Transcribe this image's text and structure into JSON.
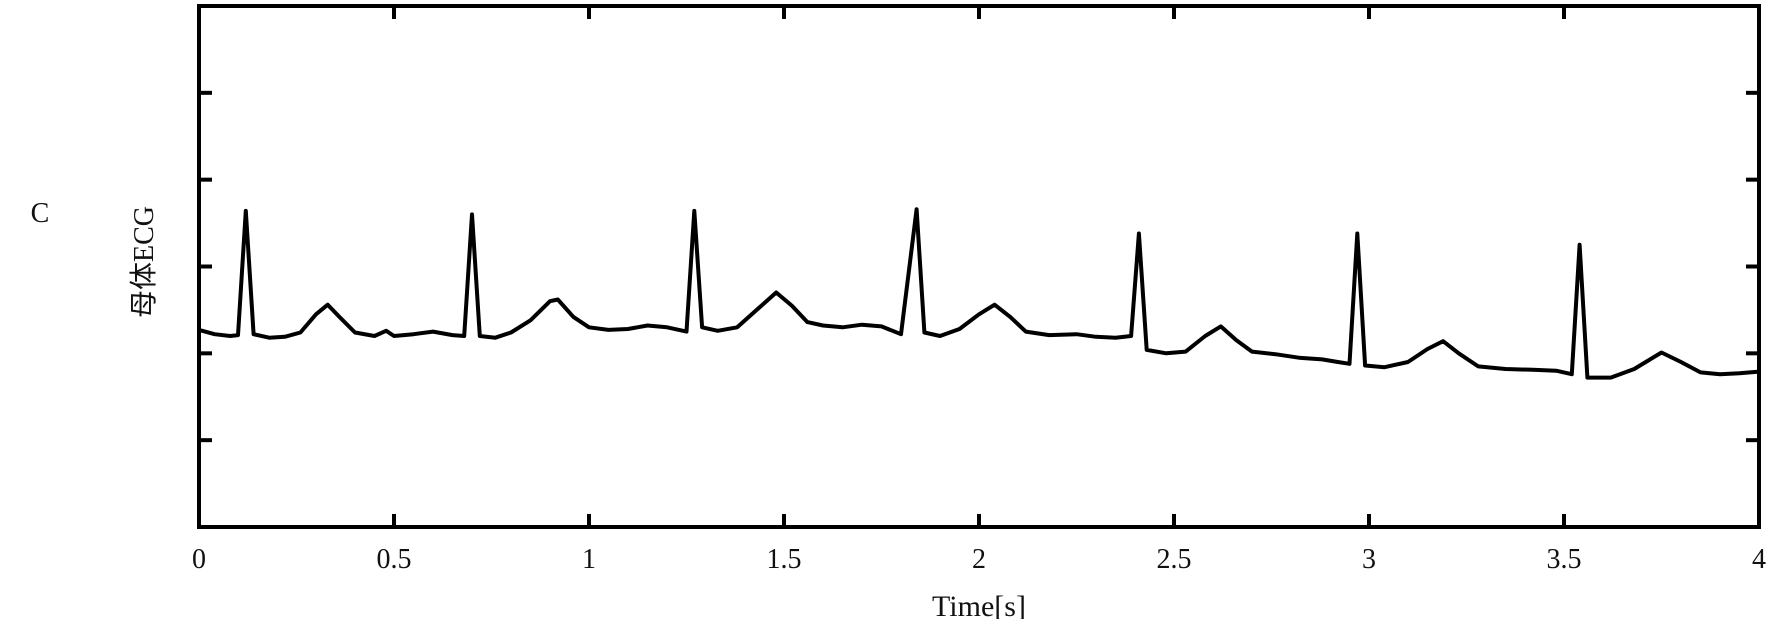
{
  "panel_label": "C",
  "chart_data": {
    "type": "line",
    "title": "",
    "xlabel": "Time[s]",
    "ylabel": "母体ECG",
    "xlim": [
      0,
      4
    ],
    "ylim": [
      0,
      6
    ],
    "x_ticks": [
      "0",
      "0.5",
      "1",
      "1.5",
      "2",
      "2.5",
      "3",
      "3.5",
      "4"
    ],
    "x_tick_values": [
      0,
      0.5,
      1,
      1.5,
      2,
      2.5,
      3,
      3.5,
      4
    ],
    "y_tick_values": [
      1,
      2,
      3,
      4,
      5
    ],
    "y_tick_labels_shown": false,
    "grid": false,
    "line_color": "#000000",
    "series": [
      {
        "x": [
          0.0,
          0.04,
          0.08,
          0.1,
          0.12,
          0.14,
          0.18,
          0.22,
          0.26,
          0.3,
          0.33,
          0.36,
          0.4,
          0.45,
          0.48,
          0.5,
          0.55,
          0.6,
          0.65,
          0.68,
          0.7,
          0.72,
          0.76,
          0.8,
          0.85,
          0.9,
          0.92,
          0.96,
          1.0,
          1.05,
          1.1,
          1.15,
          1.2,
          1.25,
          1.27,
          1.29,
          1.33,
          1.38,
          1.43,
          1.48,
          1.52,
          1.56,
          1.6,
          1.65,
          1.7,
          1.75,
          1.8,
          1.84,
          1.86,
          1.9,
          1.95,
          2.0,
          2.04,
          2.08,
          2.12,
          2.18,
          2.25,
          2.3,
          2.35,
          2.39,
          2.41,
          2.43,
          2.48,
          2.53,
          2.58,
          2.62,
          2.66,
          2.7,
          2.76,
          2.82,
          2.88,
          2.92,
          2.95,
          2.97,
          2.99,
          3.04,
          3.1,
          3.15,
          3.19,
          3.23,
          3.28,
          3.35,
          3.42,
          3.48,
          3.52,
          3.54,
          3.56,
          3.62,
          3.68,
          3.75,
          3.8,
          3.85,
          3.9,
          3.95,
          4.0
        ],
        "y": [
          2.27,
          2.22,
          2.2,
          2.21,
          3.64,
          2.22,
          2.18,
          2.19,
          2.24,
          2.45,
          2.56,
          2.42,
          2.24,
          2.2,
          2.26,
          2.2,
          2.22,
          2.25,
          2.21,
          2.2,
          3.6,
          2.2,
          2.18,
          2.24,
          2.38,
          2.6,
          2.62,
          2.42,
          2.3,
          2.27,
          2.28,
          2.32,
          2.3,
          2.25,
          3.64,
          2.3,
          2.26,
          2.3,
          2.5,
          2.7,
          2.55,
          2.36,
          2.32,
          2.3,
          2.33,
          2.31,
          2.22,
          3.66,
          2.24,
          2.2,
          2.28,
          2.45,
          2.56,
          2.42,
          2.25,
          2.21,
          2.22,
          2.19,
          2.18,
          2.2,
          3.38,
          2.04,
          2.0,
          2.02,
          2.2,
          2.31,
          2.15,
          2.02,
          1.99,
          1.95,
          1.93,
          1.9,
          1.88,
          3.38,
          1.86,
          1.84,
          1.9,
          2.05,
          2.14,
          2.0,
          1.85,
          1.82,
          1.81,
          1.8,
          1.76,
          3.25,
          1.72,
          1.72,
          1.82,
          2.01,
          1.9,
          1.78,
          1.76,
          1.77,
          1.79
        ]
      }
    ]
  }
}
